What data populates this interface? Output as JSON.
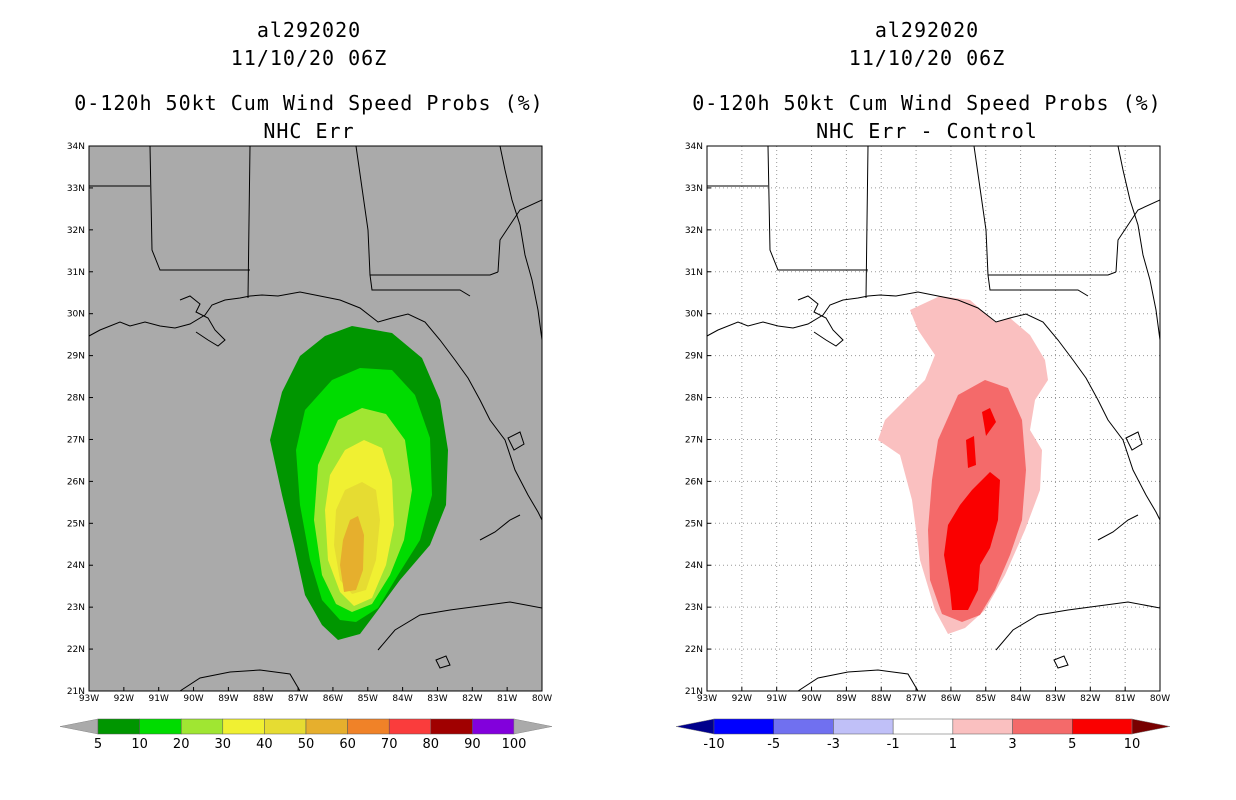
{
  "left_panel": {
    "storm_id": "al292020",
    "datetime": "11/10/20 06Z",
    "product": "0-120h 50kt Cum Wind Speed Probs (%)",
    "subtitle": "NHC Err",
    "colorbar": {
      "labels": [
        "5",
        "10",
        "20",
        "30",
        "40",
        "50",
        "60",
        "70",
        "80",
        "90",
        "100"
      ],
      "colors": [
        "#009600",
        "#00dc00",
        "#a0e632",
        "#f0f032",
        "#e6dc32",
        "#e6af2d",
        "#f08228",
        "#fa3c3c",
        "#a00000",
        "#8200dc"
      ]
    }
  },
  "right_panel": {
    "storm_id": "al292020",
    "datetime": "11/10/20 06Z",
    "product": "0-120h 50kt Cum Wind Speed Probs (%)",
    "subtitle": "NHC Err - Control",
    "colorbar": {
      "labels": [
        "-10",
        "-5",
        "-3",
        "-1",
        "1",
        "3",
        "5",
        "10"
      ],
      "colors": [
        "#0000ff",
        "#7070f0",
        "#c0c0f8",
        "#ffffff",
        "#fac0c0",
        "#f46a6a",
        "#fa0000"
      ]
    }
  },
  "axes": {
    "lat_labels": [
      "34N",
      "33N",
      "32N",
      "31N",
      "30N",
      "29N",
      "28N",
      "27N",
      "26N",
      "25N",
      "24N",
      "23N",
      "22N",
      "21N"
    ],
    "lon_labels": [
      "93W",
      "92W",
      "91W",
      "90W",
      "89W",
      "88W",
      "87W",
      "86W",
      "85W",
      "84W",
      "83W",
      "82W",
      "81W",
      "80W"
    ]
  },
  "colors": {
    "left_background": "#aaaaaa",
    "right_background": "#ffffff",
    "coastline": "#000000",
    "under_arrow_left": "#aaaaaa",
    "over_arrow_left": "#aaaaaa",
    "under_arrow_right": "#00008c",
    "over_arrow_right": "#780000"
  }
}
